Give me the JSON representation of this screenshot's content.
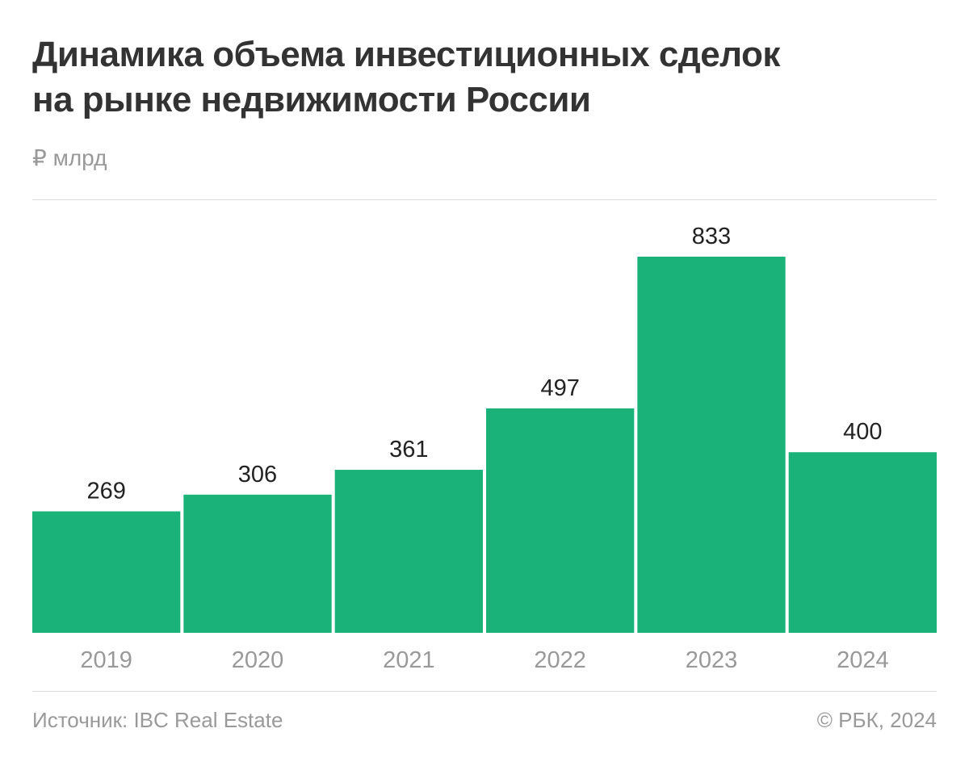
{
  "header": {
    "title_line1": "Динамика объема инвестиционных сделок",
    "title_line2": "на рынке недвижимости России",
    "unit": "₽ млрд"
  },
  "footer": {
    "source": "Источник: IBC Real Estate",
    "copyright": "© РБК, 2024"
  },
  "colors": {
    "bar": "#1bb27a",
    "value_label": "#222222",
    "category_label": "#999999"
  },
  "chart_data": {
    "type": "bar",
    "categories": [
      "2019",
      "2020",
      "2021",
      "2022",
      "2023",
      "2024"
    ],
    "values": [
      269,
      306,
      361,
      497,
      833,
      400
    ],
    "value_labels": [
      "269",
      "306",
      "361",
      "497",
      "833",
      "400"
    ],
    "title": "Динамика объема инвестиционных сделок на рынке недвижимости России",
    "ylabel": "₽ млрд",
    "xlabel": "",
    "ylim": [
      0,
      833
    ],
    "grid": false,
    "legend": "none"
  }
}
